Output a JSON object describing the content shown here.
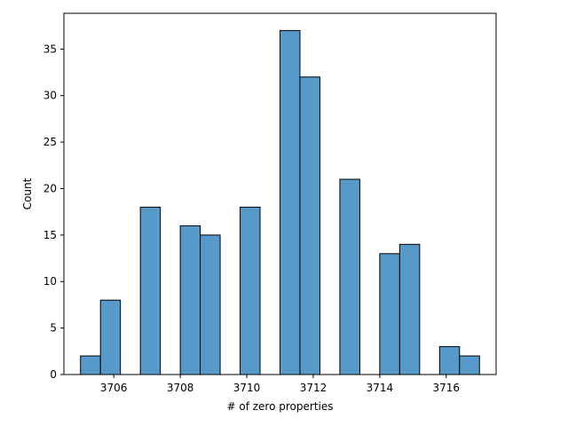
{
  "chart_data": {
    "type": "bar",
    "xlabel": "# of zero properties",
    "ylabel": "Count",
    "xlim": [
      3704.5,
      3717.5
    ],
    "ylim": [
      0,
      38.85
    ],
    "bin_width": 0.6,
    "bins": [
      {
        "start": 3705.0,
        "count": 2
      },
      {
        "start": 3705.6,
        "count": 8
      },
      {
        "start": 3706.2,
        "count": 0
      },
      {
        "start": 3706.8,
        "count": 18
      },
      {
        "start": 3707.4,
        "count": 0
      },
      {
        "start": 3708.0,
        "count": 16
      },
      {
        "start": 3708.6,
        "count": 15
      },
      {
        "start": 3709.2,
        "count": 0
      },
      {
        "start": 3709.8,
        "count": 18
      },
      {
        "start": 3710.4,
        "count": 0
      },
      {
        "start": 3711.0,
        "count": 37
      },
      {
        "start": 3711.6,
        "count": 32
      },
      {
        "start": 3712.2,
        "count": 0
      },
      {
        "start": 3712.8,
        "count": 21
      },
      {
        "start": 3713.4,
        "count": 0
      },
      {
        "start": 3714.0,
        "count": 13
      },
      {
        "start": 3714.6,
        "count": 14
      },
      {
        "start": 3715.2,
        "count": 0
      },
      {
        "start": 3715.8,
        "count": 3
      },
      {
        "start": 3716.4,
        "count": 2
      }
    ],
    "xticks": [
      3706,
      3708,
      3710,
      3712,
      3714,
      3716
    ],
    "yticks": [
      0,
      5,
      10,
      15,
      20,
      25,
      30,
      35
    ],
    "bar_color": "#5799c8",
    "edge_color": "#000000",
    "grid": false,
    "legend": "none"
  }
}
